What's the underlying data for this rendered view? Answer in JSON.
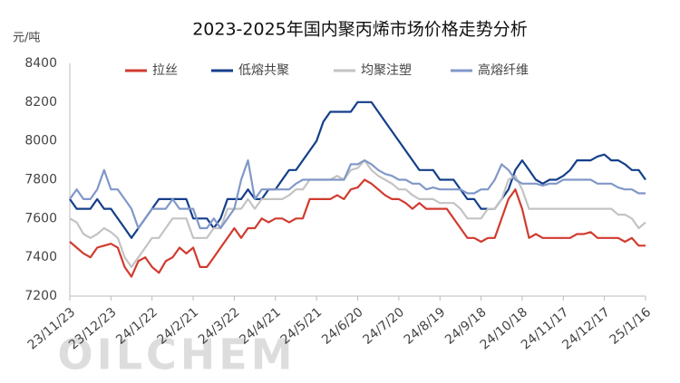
{
  "chart_data": {
    "type": "line",
    "title": "2023-2025年国内聚丙烯市场价格走势分析",
    "y_unit": "元/吨",
    "watermark": "OILCHEM",
    "categories": [
      "23/11/23",
      null,
      null,
      null,
      null,
      null,
      "23/12/23",
      null,
      null,
      null,
      null,
      null,
      "24/1/22",
      null,
      null,
      null,
      null,
      null,
      "24/2/21",
      null,
      null,
      null,
      null,
      null,
      "24/3/22",
      null,
      null,
      null,
      null,
      null,
      "24/4/21",
      null,
      null,
      null,
      null,
      null,
      "24/5/21",
      null,
      null,
      null,
      null,
      null,
      "24/6/20",
      null,
      null,
      null,
      null,
      null,
      "24/7/20",
      null,
      null,
      null,
      null,
      null,
      "24/8/19",
      null,
      null,
      null,
      null,
      null,
      "24/9/18",
      null,
      null,
      null,
      null,
      null,
      "24/10/18",
      null,
      null,
      null,
      null,
      null,
      "24/11/17",
      null,
      null,
      null,
      null,
      null,
      "24/12/17",
      null,
      null,
      null,
      null,
      null,
      "25/1/16"
    ],
    "series": [
      {
        "name": "拉丝",
        "color": "#d13b2f",
        "values": [
          7480,
          7450,
          7420,
          7400,
          7450,
          7460,
          7470,
          7450,
          7350,
          7300,
          7380,
          7400,
          7350,
          7320,
          7380,
          7400,
          7450,
          7420,
          7450,
          7350,
          7350,
          7400,
          7450,
          7500,
          7550,
          7500,
          7550,
          7550,
          7600,
          7580,
          7600,
          7600,
          7580,
          7600,
          7600,
          7700,
          7700,
          7700,
          7700,
          7720,
          7700,
          7750,
          7760,
          7800,
          7780,
          7750,
          7720,
          7700,
          7700,
          7680,
          7650,
          7680,
          7650,
          7650,
          7650,
          7650,
          7600,
          7550,
          7500,
          7500,
          7480,
          7500,
          7500,
          7600,
          7700,
          7750,
          7650,
          7500,
          7520,
          7500,
          7500,
          7500,
          7500,
          7500,
          7520,
          7520,
          7530,
          7500,
          7500,
          7500,
          7500,
          7480,
          7500,
          7460,
          7460
        ]
      },
      {
        "name": "低熔共聚",
        "color": "#143f8a",
        "values": [
          7700,
          7650,
          7650,
          7650,
          7700,
          7650,
          7650,
          7600,
          7550,
          7500,
          7550,
          7600,
          7650,
          7700,
          7700,
          7700,
          7700,
          7700,
          7600,
          7600,
          7600,
          7550,
          7600,
          7700,
          7700,
          7700,
          7750,
          7700,
          7700,
          7750,
          7750,
          7800,
          7850,
          7850,
          7900,
          7950,
          8000,
          8100,
          8150,
          8150,
          8150,
          8150,
          8200,
          8200,
          8200,
          8150,
          8100,
          8050,
          8000,
          7950,
          7900,
          7850,
          7850,
          7850,
          7800,
          7800,
          7800,
          7750,
          7700,
          7700,
          7650,
          7650,
          7650,
          7700,
          7750,
          7850,
          7900,
          7850,
          7800,
          7780,
          7800,
          7800,
          7820,
          7850,
          7900,
          7900,
          7900,
          7920,
          7930,
          7900,
          7900,
          7880,
          7850,
          7850,
          7800
        ]
      },
      {
        "name": "均聚注塑",
        "color": "#c3c3c3",
        "values": [
          7600,
          7580,
          7520,
          7500,
          7520,
          7550,
          7530,
          7500,
          7400,
          7350,
          7400,
          7450,
          7500,
          7500,
          7550,
          7600,
          7600,
          7600,
          7500,
          7500,
          7500,
          7550,
          7550,
          7650,
          7650,
          7650,
          7700,
          7650,
          7700,
          7700,
          7700,
          7700,
          7720,
          7750,
          7750,
          7800,
          7800,
          7800,
          7800,
          7820,
          7800,
          7850,
          7860,
          7900,
          7850,
          7820,
          7800,
          7780,
          7750,
          7750,
          7720,
          7700,
          7700,
          7700,
          7680,
          7680,
          7680,
          7650,
          7600,
          7600,
          7600,
          7650,
          7650,
          7700,
          7800,
          7820,
          7750,
          7650,
          7650,
          7650,
          7650,
          7650,
          7650,
          7650,
          7650,
          7650,
          7650,
          7650,
          7650,
          7650,
          7620,
          7620,
          7600,
          7550,
          7580
        ]
      },
      {
        "name": "高熔纤维",
        "color": "#8098c8",
        "values": [
          7700,
          7750,
          7700,
          7700,
          7750,
          7850,
          7750,
          7750,
          7700,
          7650,
          7550,
          7600,
          7650,
          7650,
          7650,
          7700,
          7650,
          7650,
          7650,
          7550,
          7550,
          7600,
          7550,
          7600,
          7650,
          7800,
          7900,
          7700,
          7750,
          7750,
          7750,
          7750,
          7750,
          7780,
          7800,
          7800,
          7800,
          7800,
          7800,
          7800,
          7800,
          7880,
          7880,
          7900,
          7880,
          7850,
          7830,
          7820,
          7800,
          7800,
          7780,
          7780,
          7750,
          7760,
          7750,
          7750,
          7750,
          7750,
          7730,
          7730,
          7750,
          7750,
          7800,
          7880,
          7850,
          7800,
          7780,
          7780,
          7780,
          7770,
          7780,
          7780,
          7800,
          7800,
          7800,
          7800,
          7800,
          7780,
          7780,
          7780,
          7760,
          7750,
          7750,
          7730,
          7730
        ]
      }
    ],
    "ylim": [
      7200,
      8400
    ],
    "yticks": [
      7200,
      7400,
      7600,
      7800,
      8000,
      8200,
      8400
    ],
    "legend": "top",
    "grid": false
  }
}
